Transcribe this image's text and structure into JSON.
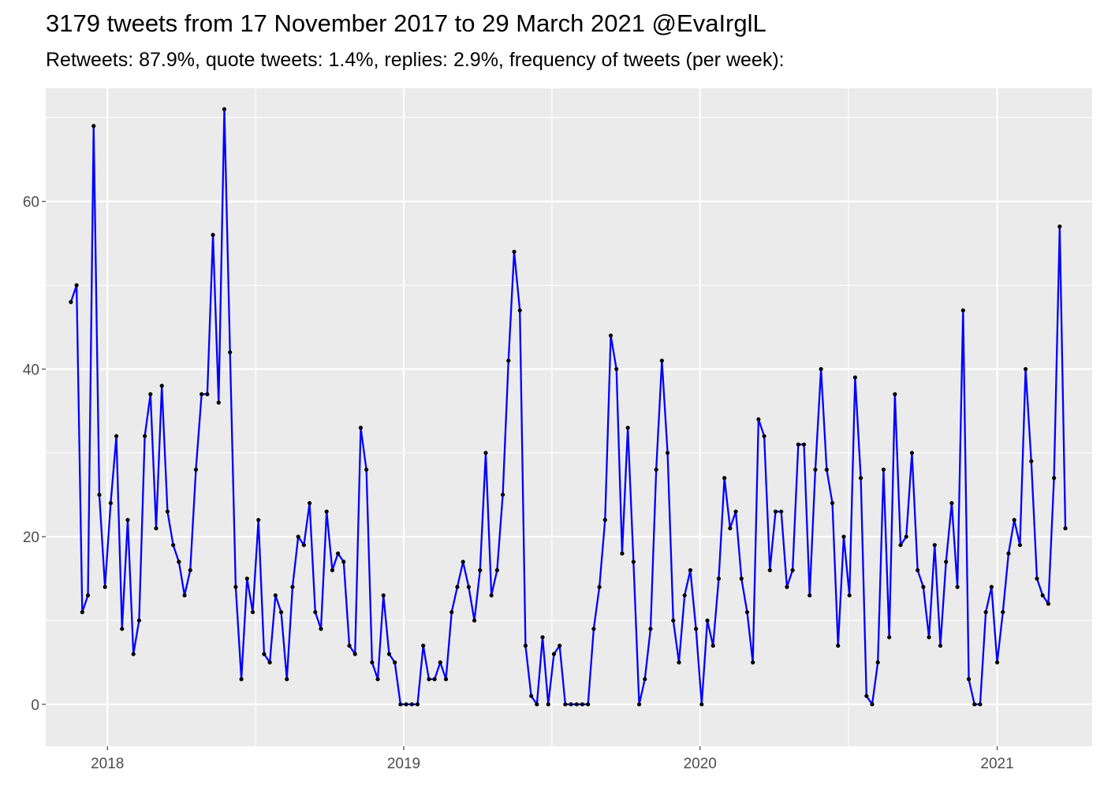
{
  "chart_data": {
    "type": "line",
    "title": "3179 tweets from 17 November 2017 to 29 March 2021 @EvaIrglL",
    "subtitle": "Retweets: 87.9%, quote tweets: 1.4%, replies: 2.9%, frequency of tweets (per week):",
    "xlabel": "",
    "ylabel": "",
    "x_start": "2017-11-17",
    "x_step_days": 7,
    "xlim": [
      "2017-10-17",
      "2021-04-28"
    ],
    "ylim": [
      -5,
      73.5
    ],
    "x_ticks": [
      {
        "date": "2018-01-01",
        "label": "2018"
      },
      {
        "date": "2019-01-01",
        "label": "2019"
      },
      {
        "date": "2020-01-01",
        "label": "2020"
      },
      {
        "date": "2021-01-01",
        "label": "2021"
      }
    ],
    "y_ticks": [
      0,
      20,
      40,
      60
    ],
    "grid": true,
    "legend": "none",
    "colors": {
      "line": "#0000ff",
      "point": "#000000",
      "panel": "#ebebeb",
      "grid": "#ffffff"
    },
    "values": [
      48,
      50,
      11,
      13,
      69,
      25,
      14,
      24,
      32,
      9,
      22,
      6,
      10,
      32,
      37,
      21,
      38,
      23,
      19,
      17,
      13,
      16,
      28,
      37,
      37,
      56,
      36,
      71,
      42,
      14,
      3,
      15,
      11,
      22,
      6,
      5,
      13,
      11,
      3,
      14,
      20,
      19,
      24,
      11,
      9,
      23,
      16,
      18,
      17,
      7,
      6,
      33,
      28,
      5,
      3,
      13,
      6,
      5,
      0,
      0,
      0,
      0,
      7,
      3,
      3,
      5,
      3,
      11,
      14,
      17,
      14,
      10,
      16,
      30,
      13,
      16,
      25,
      41,
      54,
      47,
      7,
      1,
      0,
      8,
      0,
      6,
      7,
      0,
      0,
      0,
      0,
      0,
      9,
      14,
      22,
      44,
      40,
      18,
      33,
      17,
      0,
      3,
      9,
      28,
      41,
      30,
      10,
      5,
      13,
      16,
      9,
      0,
      10,
      7,
      15,
      27,
      21,
      23,
      15,
      11,
      5,
      34,
      32,
      16,
      23,
      23,
      14,
      16,
      31,
      31,
      13,
      28,
      40,
      28,
      24,
      7,
      20,
      13,
      39,
      27,
      1,
      0,
      5,
      28,
      8,
      37,
      19,
      20,
      30,
      16,
      14,
      8,
      19,
      7,
      17,
      24,
      14,
      47,
      3,
      0,
      0,
      11,
      14,
      5,
      11,
      18,
      22,
      19,
      40,
      29,
      15,
      13,
      12,
      27,
      57,
      21
    ]
  }
}
